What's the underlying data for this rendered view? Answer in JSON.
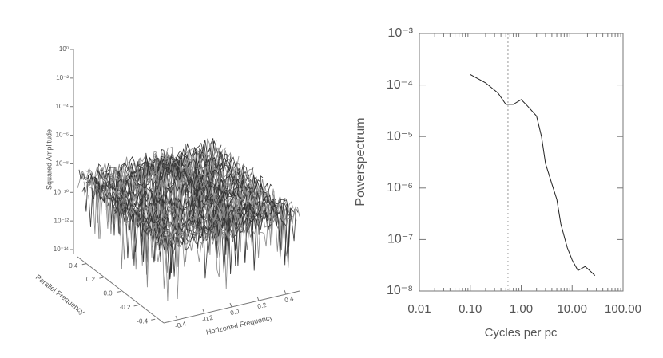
{
  "chart_data": [
    {
      "type": "surface",
      "zlabel": "Squared Amplitude",
      "xlabel": "Horizontal Frequency",
      "ylabel": "Parallel Frequency",
      "zscale": "log",
      "zlim": [
        1e-14,
        1
      ],
      "zticks": [
        {
          "value": 1,
          "label": "10⁰"
        },
        {
          "value": 0.01,
          "label": "10⁻²"
        },
        {
          "value": 0.0001,
          "label": "10⁻⁴"
        },
        {
          "value": 1e-06,
          "label": "10⁻⁶"
        },
        {
          "value": 1e-08,
          "label": "10⁻⁸"
        },
        {
          "value": 1e-10,
          "label": "10⁻¹⁰"
        },
        {
          "value": 1e-12,
          "label": "10⁻¹²"
        },
        {
          "value": 1e-14,
          "label": "10⁻¹⁴"
        }
      ],
      "xlim": [
        -0.5,
        0.5
      ],
      "xticks": [
        -0.4,
        -0.2,
        {
          "value": 0,
          "label": "0.0"
        },
        0.2,
        0.4
      ],
      "ylim": [
        -0.5,
        0.5
      ],
      "yticks": [
        -0.4,
        -0.2,
        {
          "value": 0,
          "label": "0.0"
        },
        0.2,
        0.4
      ],
      "color": "#333333"
    },
    {
      "type": "line",
      "xlabel": "Cycles per pc",
      "ylabel": "Powerspectrum",
      "xscale": "log",
      "yscale": "log",
      "xlim": [
        0.01,
        100
      ],
      "xticks": [
        0.01,
        {
          "value": 0.1,
          "label": "0.10"
        },
        {
          "value": 1,
          "label": "1.00"
        },
        {
          "value": 10,
          "label": "10.00"
        },
        {
          "value": 100,
          "label": "100.00"
        }
      ],
      "ylim": [
        1e-08,
        0.001
      ],
      "yticks": [
        {
          "value": 1e-08,
          "label": "10⁻⁸"
        },
        {
          "value": 1e-07,
          "label": "10⁻⁷"
        },
        {
          "value": 1e-06,
          "label": "10⁻⁶"
        },
        {
          "value": 1e-05,
          "label": "10⁻⁵"
        },
        {
          "value": 0.0001,
          "label": "10⁻⁴"
        },
        {
          "value": 0.001,
          "label": "10⁻³"
        }
      ],
      "reference_x": 0.55,
      "x": [
        0.1,
        0.2,
        0.35,
        0.5,
        0.7,
        1.0,
        1.3,
        2.0,
        2.5,
        3,
        4,
        5,
        6,
        8,
        10,
        13,
        18,
        22,
        28
      ],
      "values": [
        0.00016,
        0.00011,
        7e-05,
        4.2e-05,
        4.2e-05,
        5.2e-05,
        4e-05,
        2.5e-05,
        1e-05,
        3e-06,
        1.2e-06,
        6e-07,
        2e-07,
        7e-08,
        4e-08,
        2.5e-08,
        3e-08,
        2.5e-08,
        2e-08
      ],
      "color": "#222222"
    }
  ]
}
